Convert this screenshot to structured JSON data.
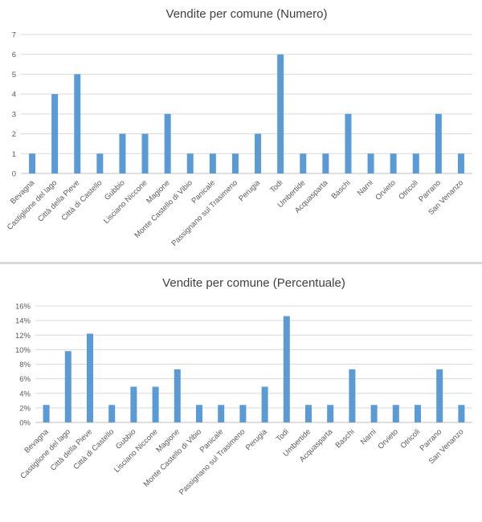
{
  "chart_data": [
    {
      "type": "bar",
      "title": "Vendite per comune (Numero)",
      "xlabel": "",
      "ylabel": "",
      "categories": [
        "Bevagna",
        "Castiglione del lago",
        "Città della Pieve",
        "Città di Castello",
        "Gubbio",
        "Lisciano Niccone",
        "Magione",
        "Monte Castello di Vibio",
        "Panicale",
        "Passignano sul Trasimeno",
        "Perugia",
        "Todi",
        "Umbertide",
        "Acquasparta",
        "Baschi",
        "Narni",
        "Orvieto",
        "Otricoli",
        "Parrano",
        "San Venanzo"
      ],
      "values": [
        1,
        4,
        5,
        1,
        2,
        2,
        3,
        1,
        1,
        1,
        2,
        6,
        1,
        1,
        3,
        1,
        1,
        1,
        3,
        1
      ],
      "ylim": [
        0,
        7
      ],
      "yticks": [
        "0",
        "1",
        "2",
        "3",
        "4",
        "5",
        "6",
        "7"
      ],
      "grid": true,
      "legend": "none",
      "bar_color": "#5b9bd5"
    },
    {
      "type": "bar",
      "title": "Vendite per comune (Percentuale)",
      "xlabel": "",
      "ylabel": "",
      "categories": [
        "Bevagna",
        "Castiglione del lago",
        "Città della Pieve",
        "Città di Castello",
        "Gubbio",
        "Lisciano Niccone",
        "Magione",
        "Monte Castello di Vibio",
        "Panicale",
        "Passignano sul Trasimeno",
        "Perugia",
        "Todi",
        "Umbertide",
        "Acquasparta",
        "Baschi",
        "Narni",
        "Orvieto",
        "Otricoli",
        "Parrano",
        "San Venanzo"
      ],
      "values": [
        2.4,
        9.8,
        12.2,
        2.4,
        4.9,
        4.9,
        7.3,
        2.4,
        2.4,
        2.4,
        4.9,
        14.6,
        2.4,
        2.4,
        7.3,
        2.4,
        2.4,
        2.4,
        7.3,
        2.4
      ],
      "ylim": [
        0,
        16
      ],
      "yticks": [
        "0%",
        "2%",
        "4%",
        "6%",
        "8%",
        "10%",
        "12%",
        "14%",
        "16%"
      ],
      "grid": true,
      "legend": "none",
      "bar_color": "#5b9bd5"
    }
  ]
}
